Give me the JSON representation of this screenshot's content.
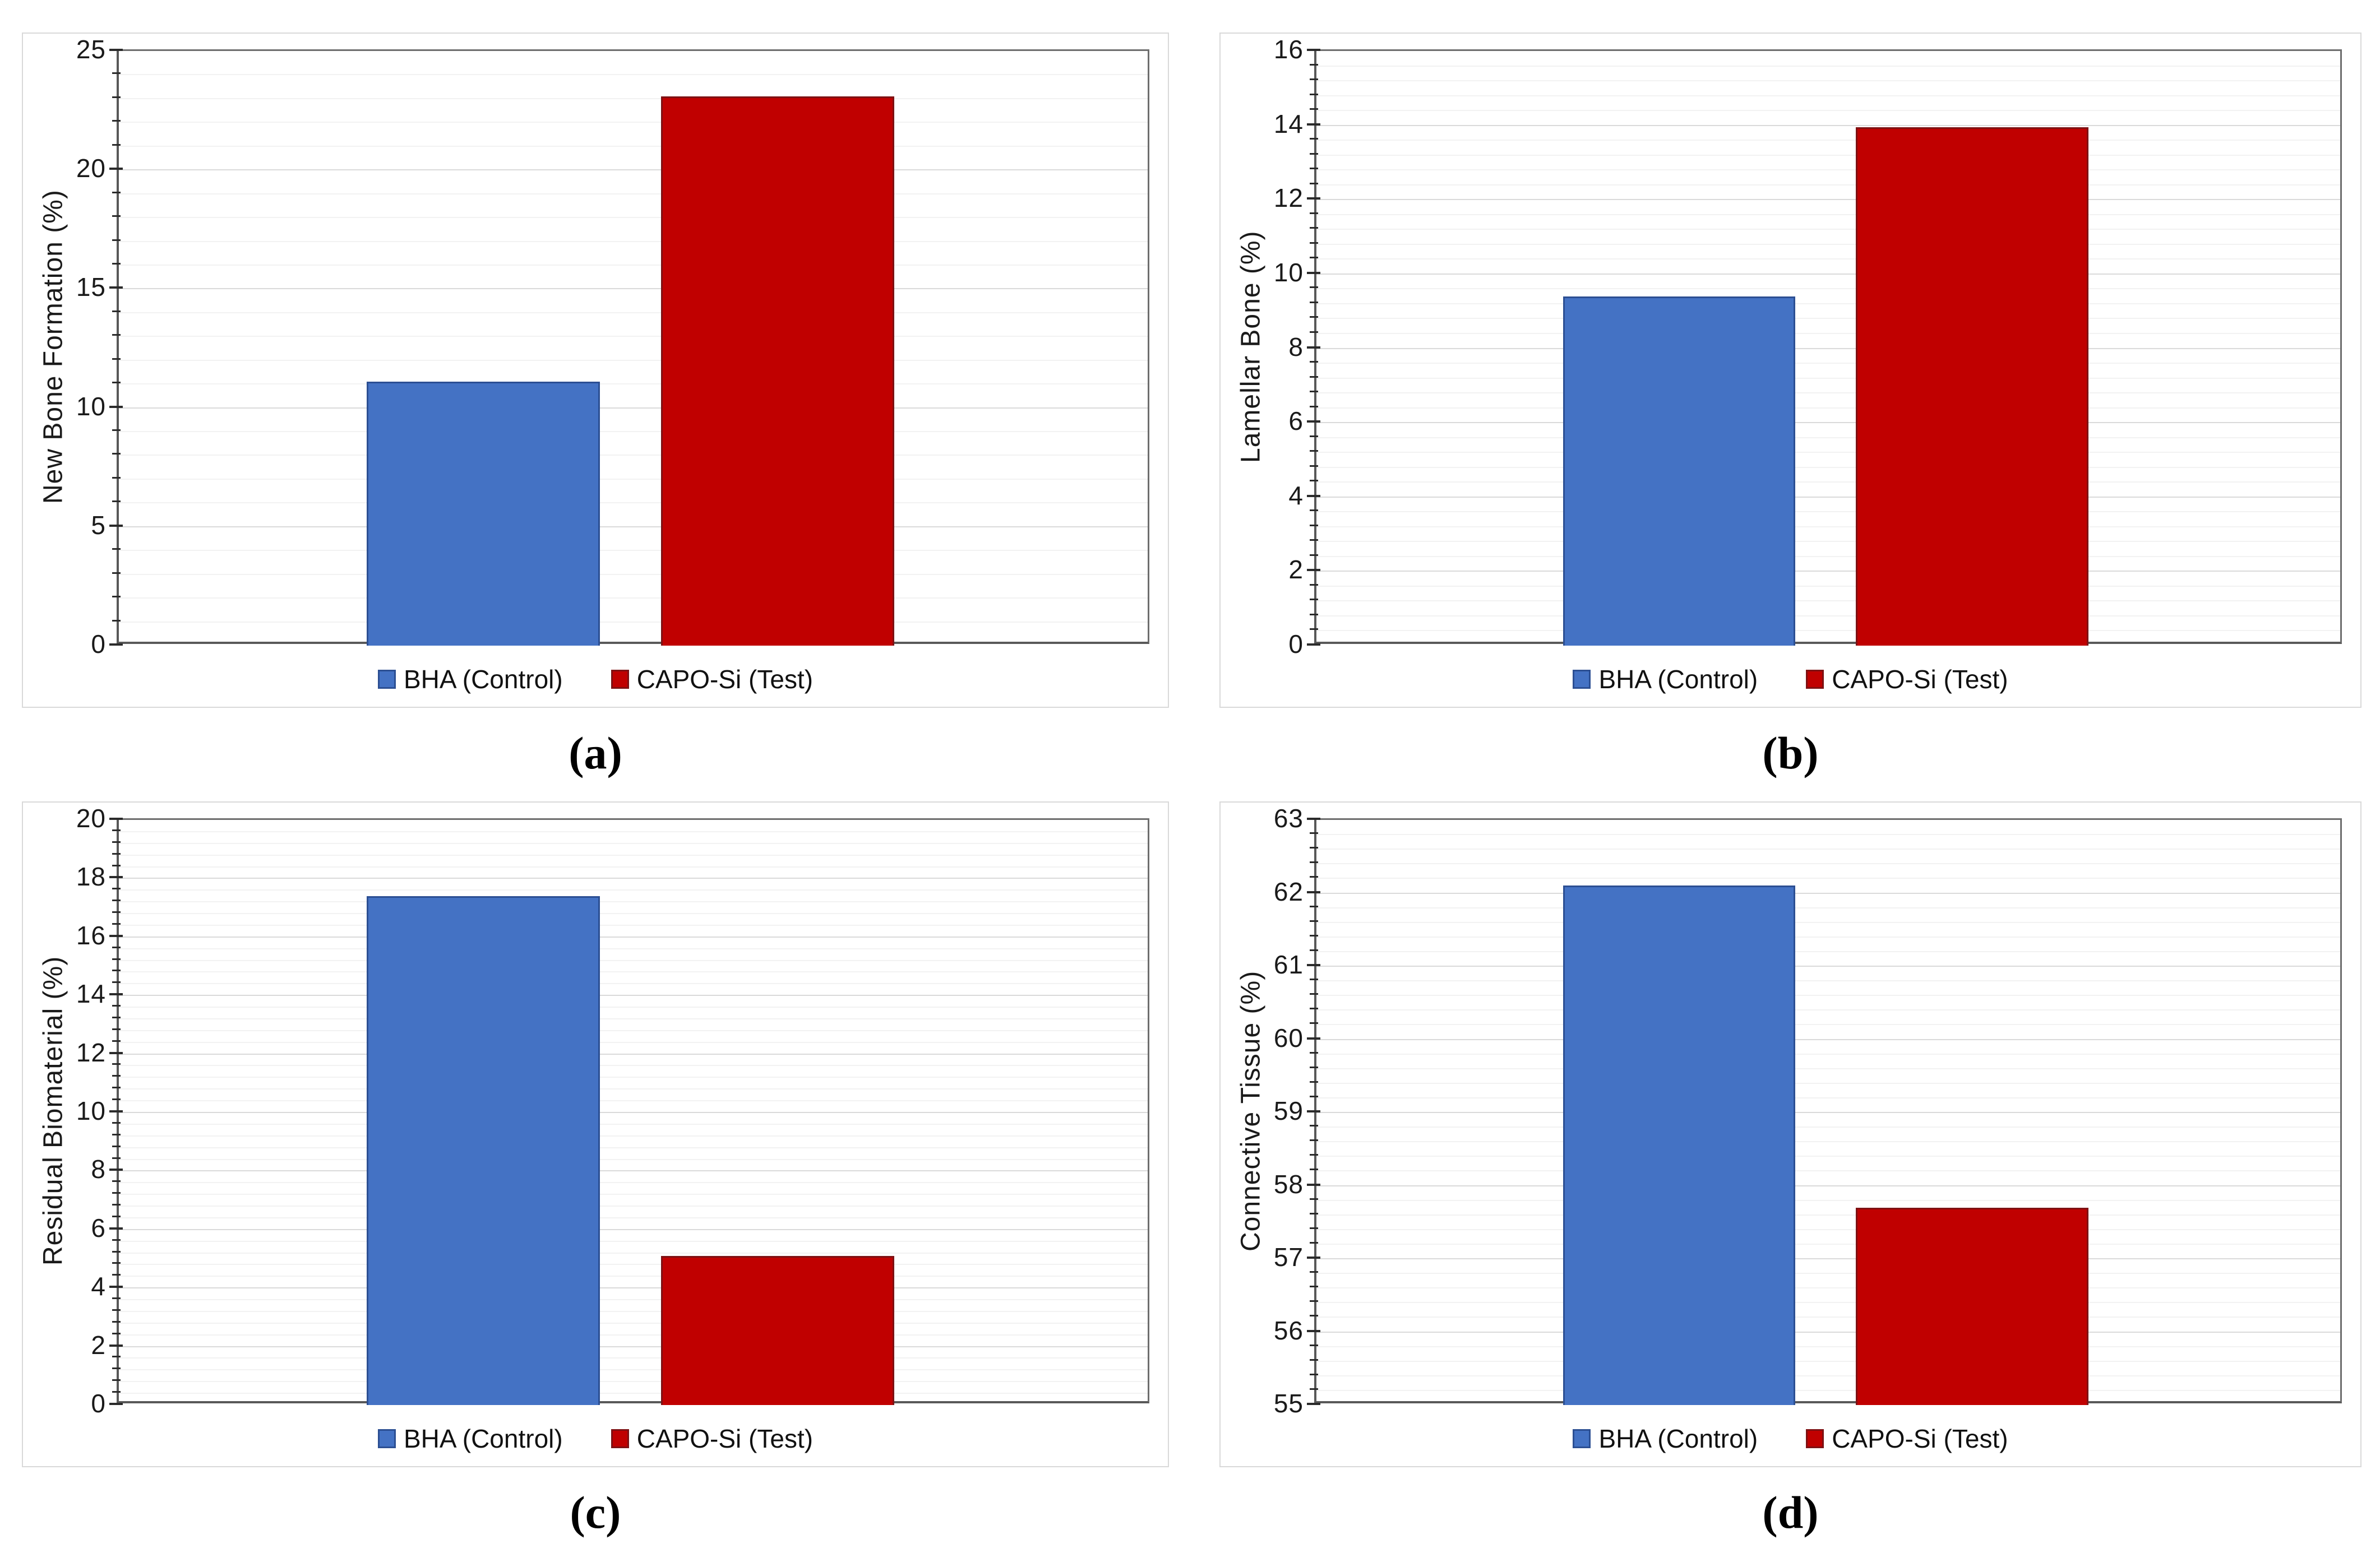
{
  "page": {
    "background": "#FFFFFF"
  },
  "colors": {
    "control_fill": "#4472C4",
    "control_border": "#2C4F93",
    "test_fill": "#C00000",
    "test_border": "#7E1113",
    "axis_line": "#6E6E6E",
    "grid_major": "#DADADA",
    "grid_minor": "#F2F2F2",
    "tick_mark": "#2B2B2B",
    "panel_border": "#D9D9D9",
    "label_text": "#1A1A1A"
  },
  "chart_data": [
    {
      "type": "bar",
      "panel_label": "(a)",
      "title": "",
      "xlabel": "",
      "ylabel": "New Bone Formation (%)",
      "ylim": [
        0,
        25
      ],
      "ytick_major": 5,
      "ytick_minor": 1,
      "grid": "horizontal major+minor",
      "legend_position": "bottom",
      "categories": [
        "BHA (Control)",
        "CAPO-Si (Test)"
      ],
      "values": [
        11.1,
        23.1
      ],
      "bar_colors": [
        "#4472C4",
        "#C00000"
      ],
      "bar_border_colors": [
        "#2C4F93",
        "#7E1113"
      ]
    },
    {
      "type": "bar",
      "panel_label": "(b)",
      "title": "",
      "xlabel": "",
      "ylabel": "Lamellar Bone (%)",
      "ylim": [
        0,
        16
      ],
      "ytick_major": 2,
      "ytick_minor": 0.4,
      "grid": "horizontal major+minor",
      "legend_position": "bottom",
      "categories": [
        "BHA (Control)",
        "CAPO-Si (Test)"
      ],
      "values": [
        9.4,
        13.95
      ],
      "bar_colors": [
        "#4472C4",
        "#C00000"
      ],
      "bar_border_colors": [
        "#2C4F93",
        "#7E1113"
      ]
    },
    {
      "type": "bar",
      "panel_label": "(c)",
      "title": "",
      "xlabel": "",
      "ylabel": "Residual Biomaterial (%)",
      "ylim": [
        0,
        20
      ],
      "ytick_major": 2,
      "ytick_minor": 0.4,
      "grid": "horizontal major+minor",
      "legend_position": "bottom",
      "categories": [
        "BHA (Control)",
        "CAPO-Si (Test)"
      ],
      "values": [
        17.4,
        5.1
      ],
      "bar_colors": [
        "#4472C4",
        "#C00000"
      ],
      "bar_border_colors": [
        "#2C4F93",
        "#7E1113"
      ]
    },
    {
      "type": "bar",
      "panel_label": "(d)",
      "title": "",
      "xlabel": "",
      "ylabel": "Connective Tissue (%)",
      "ylim": [
        55,
        63
      ],
      "ytick_major": 1,
      "ytick_minor": 0.2,
      "grid": "horizontal major+minor",
      "legend_position": "bottom",
      "categories": [
        "BHA (Control)",
        "CAPO-Si (Test)"
      ],
      "values": [
        62.1,
        57.7
      ],
      "bar_colors": [
        "#4472C4",
        "#C00000"
      ],
      "bar_border_colors": [
        "#2C4F93",
        "#7E1113"
      ]
    }
  ]
}
